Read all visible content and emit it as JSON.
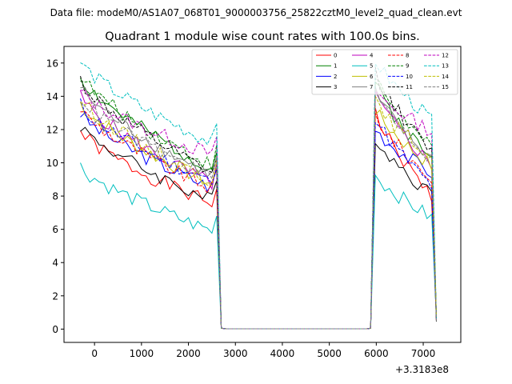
{
  "chart_data": {
    "type": "line",
    "suptitle": "Data file: modeM0/AS1A07_068T01_9000003756_25822cztM0_level2_quad_clean.evt",
    "title": "Quadrant 1 module wise count rates with 100.0s bins.",
    "xlabel": "",
    "ylabel": "",
    "x_offset_label": "+3.3183e8",
    "xlim": [
      -650,
      7800
    ],
    "ylim": [
      -0.8,
      17.0
    ],
    "xticks": [
      0,
      1000,
      2000,
      3000,
      4000,
      5000,
      6000,
      7000
    ],
    "yticks": [
      0,
      2,
      4,
      6,
      8,
      10,
      12,
      14,
      16
    ],
    "legend_position": "upper right",
    "legend_columns": 4,
    "segments": [
      {
        "start": -300,
        "step": 100,
        "count": 30
      },
      {
        "start": 5880,
        "step": 100,
        "count": 15
      }
    ],
    "flat_segment": {
      "x": [
        2700,
        2800,
        5800
      ],
      "values": [
        0.05,
        0.02,
        0.02
      ]
    },
    "series": [
      {
        "name": "0",
        "color": "#ff0000",
        "dash": "solid",
        "a": 11.9,
        "b": 7.4,
        "r": 13.0,
        "s": 8.0,
        "seed": 1
      },
      {
        "name": "1",
        "color": "#008000",
        "dash": "solid",
        "a": 15.2,
        "b": 9.5,
        "r": 14.8,
        "s": 10.2,
        "seed": 2
      },
      {
        "name": "2",
        "color": "#0000ff",
        "dash": "solid",
        "a": 13.0,
        "b": 8.4,
        "r": 12.1,
        "s": 9.4,
        "seed": 3
      },
      {
        "name": "3",
        "color": "#000000",
        "dash": "solid",
        "a": 12.3,
        "b": 7.6,
        "r": 11.6,
        "s": 8.1,
        "seed": 4
      },
      {
        "name": "4",
        "color": "#bf00bf",
        "dash": "solid",
        "a": 14.0,
        "b": 8.6,
        "r": 14.1,
        "s": 9.9,
        "seed": 5
      },
      {
        "name": "5",
        "color": "#00bfbf",
        "dash": "solid",
        "a": 9.8,
        "b": 5.8,
        "r": 9.3,
        "s": 6.7,
        "seed": 6
      },
      {
        "name": "6",
        "color": "#bfbf00",
        "dash": "solid",
        "a": 13.6,
        "b": 8.6,
        "r": 13.2,
        "s": 9.8,
        "seed": 7
      },
      {
        "name": "7",
        "color": "#808080",
        "dash": "solid",
        "a": 14.6,
        "b": 9.1,
        "r": 14.2,
        "s": 10.2,
        "seed": 8
      },
      {
        "name": "8",
        "color": "#ff0000",
        "dash": "dashed",
        "a": 13.3,
        "b": 8.3,
        "r": 12.9,
        "s": 9.0,
        "seed": 9
      },
      {
        "name": "9",
        "color": "#008000",
        "dash": "dashed",
        "a": 15.3,
        "b": 9.7,
        "r": 15.2,
        "s": 10.8,
        "seed": 10
      },
      {
        "name": "10",
        "color": "#0000ff",
        "dash": "dashed",
        "a": 13.5,
        "b": 8.7,
        "r": 12.8,
        "s": 8.6,
        "seed": 11
      },
      {
        "name": "11",
        "color": "#000000",
        "dash": "dashed",
        "a": 15.0,
        "b": 9.2,
        "r": 15.5,
        "s": 10.6,
        "seed": 12
      },
      {
        "name": "12",
        "color": "#bf00bf",
        "dash": "dashed",
        "a": 14.3,
        "b": 10.4,
        "r": 14.3,
        "s": 11.9,
        "seed": 13
      },
      {
        "name": "13",
        "color": "#00bfbf",
        "dash": "dashed",
        "a": 16.1,
        "b": 11.1,
        "r": 16.2,
        "s": 12.6,
        "seed": 14
      },
      {
        "name": "14",
        "color": "#bfbf00",
        "dash": "dashed",
        "a": 13.9,
        "b": 8.8,
        "r": 13.6,
        "s": 10.4,
        "seed": 15
      },
      {
        "name": "15",
        "color": "#808080",
        "dash": "dashed",
        "a": 14.0,
        "b": 9.0,
        "r": 14.3,
        "s": 10.2,
        "seed": 16
      }
    ]
  }
}
